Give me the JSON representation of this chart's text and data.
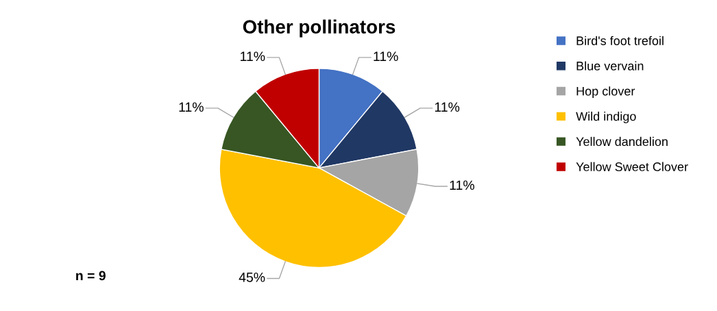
{
  "chart_data": {
    "type": "pie",
    "title": "Other pollinators",
    "categories": [
      "Bird's foot trefoil",
      "Blue vervain",
      "Hop clover",
      "Wild indigo",
      "Yellow dandelion",
      "Yellow Sweet Clover"
    ],
    "values": [
      11,
      11,
      11,
      45,
      11,
      11
    ],
    "colors": [
      "#4472c4",
      "#203864",
      "#a5a5a5",
      "#ffc000",
      "#375623",
      "#c00000"
    ],
    "value_labels": [
      "11%",
      "11%",
      "11%",
      "45%",
      "11%",
      "11%"
    ],
    "legend": "right",
    "annotations": [
      "n = 9"
    ]
  }
}
